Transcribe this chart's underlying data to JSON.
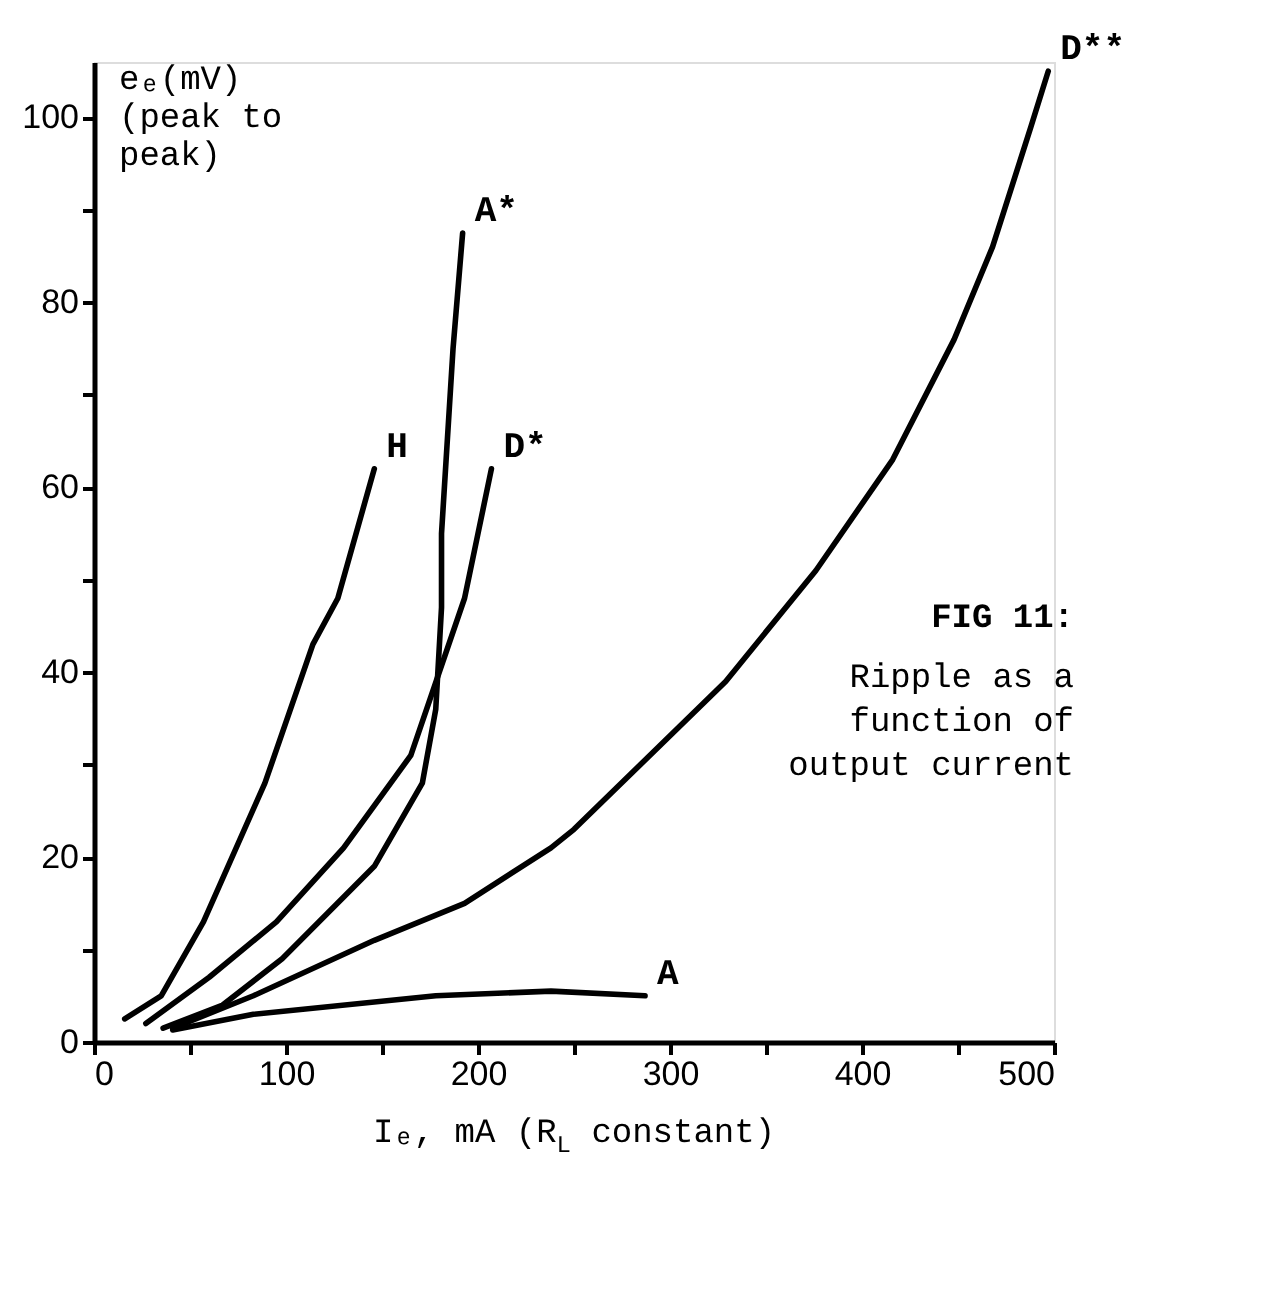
{
  "chart_data": {
    "type": "line",
    "xlabel": "Iₑ, mA (R$_{L}$ constant)",
    "ylabel": "eₑ(mV)\n(peak to\npeak)",
    "annotations": [
      "FIG 11:",
      "Ripple as a\nfunction of\noutput current"
    ],
    "series": [
      {
        "name": "H",
        "color": "#000000",
        "x": [
          16,
          35,
          57,
          89,
          114,
          127,
          146
        ],
        "values": [
          2.5,
          5,
          13,
          28,
          43,
          48,
          62
        ]
      },
      {
        "name": "D*",
        "color": "#000000",
        "x": [
          27,
          60,
          95,
          130,
          165,
          193,
          200,
          207
        ],
        "values": [
          2,
          7,
          13,
          21,
          31,
          48,
          55,
          62
        ]
      },
      {
        "name": "A*",
        "color": "#000000",
        "x": [
          36,
          67,
          98,
          146,
          171,
          178,
          181,
          181,
          187,
          192
        ],
        "values": [
          1.5,
          4,
          9,
          19,
          28,
          36,
          47,
          55,
          75,
          87.5
        ]
      },
      {
        "name": "D**",
        "color": "#000000",
        "x": [
          41,
          83,
          146,
          193,
          238,
          250,
          329,
          376,
          416,
          448,
          468,
          488,
          497
        ],
        "values": [
          1.5,
          5,
          11,
          15,
          21,
          23,
          39,
          51,
          63,
          76,
          86,
          99,
          105
        ]
      },
      {
        "name": "A",
        "color": "#000000",
        "x": [
          41,
          83,
          178,
          238,
          287
        ],
        "values": [
          1.3,
          3,
          5,
          5.5,
          5
        ]
      }
    ],
    "xlim": [
      0,
      500
    ],
    "xticks": [
      0,
      {
        "value": 50,
        "label": null
      },
      100,
      {
        "value": 150,
        "label": null
      },
      200,
      {
        "value": 250,
        "label": null
      },
      300,
      {
        "value": 350,
        "label": null
      },
      400,
      {
        "value": 450,
        "label": null
      },
      500
    ],
    "ylim": [
      0,
      106
    ],
    "yticks": [
      0,
      {
        "value": 10,
        "label": null
      },
      20,
      {
        "value": 30,
        "label": null
      },
      40,
      {
        "value": 50,
        "label": null
      },
      60,
      {
        "value": 70,
        "label": null
      },
      80,
      {
        "value": 90,
        "label": null
      },
      100
    ],
    "marker": "none",
    "line_style": "solid"
  }
}
